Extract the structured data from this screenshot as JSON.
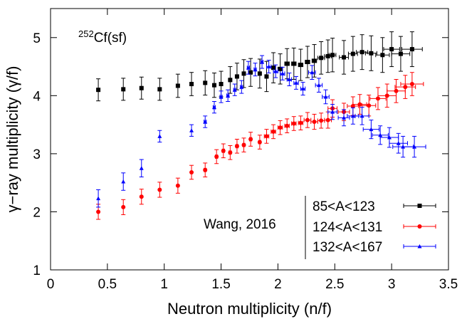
{
  "chart_data": {
    "type": "scatter",
    "title": "",
    "xlabel": "Neutron multiplicity (n/f)",
    "ylabel": "γ−ray multiplicity (γ/f)",
    "xlim": [
      0,
      3.5
    ],
    "ylim": [
      1,
      5.5
    ],
    "xticks": [
      "0",
      "0.5",
      "1",
      "1.5",
      "2",
      "2.5",
      "3",
      "3.5"
    ],
    "yticks": [
      "1",
      "2",
      "3",
      "4",
      "5"
    ],
    "grid": false,
    "legend_position": "bottom-right",
    "annotations": {
      "nucleus": {
        "mass": "252",
        "text": "Cf(sf)"
      },
      "source": "Wang, 2016"
    },
    "series": [
      {
        "name": "85<A<123",
        "color": "#000000",
        "marker": "square",
        "points": [
          {
            "x": 0.42,
            "y": 4.1,
            "yerr": 0.19,
            "xerr": 0.0
          },
          {
            "x": 0.64,
            "y": 4.11,
            "yerr": 0.19,
            "xerr": 0.0
          },
          {
            "x": 0.8,
            "y": 4.13,
            "yerr": 0.19,
            "xerr": 0.0
          },
          {
            "x": 0.96,
            "y": 4.11,
            "yerr": 0.19,
            "xerr": 0.0
          },
          {
            "x": 1.12,
            "y": 4.17,
            "yerr": 0.2,
            "xerr": 0.0
          },
          {
            "x": 1.24,
            "y": 4.2,
            "yerr": 0.2,
            "xerr": 0.0
          },
          {
            "x": 1.36,
            "y": 4.22,
            "yerr": 0.21,
            "xerr": 0.0
          },
          {
            "x": 1.44,
            "y": 4.18,
            "yerr": 0.21,
            "xerr": 0.0
          },
          {
            "x": 1.5,
            "y": 4.2,
            "yerr": 0.22,
            "xerr": 0.0
          },
          {
            "x": 1.58,
            "y": 4.27,
            "yerr": 0.23,
            "xerr": 0.01
          },
          {
            "x": 1.64,
            "y": 4.33,
            "yerr": 0.23,
            "xerr": 0.01
          },
          {
            "x": 1.7,
            "y": 4.38,
            "yerr": 0.24,
            "xerr": 0.01
          },
          {
            "x": 1.76,
            "y": 4.4,
            "yerr": 0.24,
            "xerr": 0.01
          },
          {
            "x": 1.84,
            "y": 4.38,
            "yerr": 0.25,
            "xerr": 0.01
          },
          {
            "x": 1.9,
            "y": 4.33,
            "yerr": 0.26,
            "xerr": 0.01
          },
          {
            "x": 1.96,
            "y": 4.48,
            "yerr": 0.26,
            "xerr": 0.01
          },
          {
            "x": 2.02,
            "y": 4.46,
            "yerr": 0.26,
            "xerr": 0.02
          },
          {
            "x": 2.08,
            "y": 4.55,
            "yerr": 0.26,
            "xerr": 0.02
          },
          {
            "x": 2.14,
            "y": 4.55,
            "yerr": 0.27,
            "xerr": 0.02
          },
          {
            "x": 2.2,
            "y": 4.53,
            "yerr": 0.27,
            "xerr": 0.02
          },
          {
            "x": 2.26,
            "y": 4.58,
            "yerr": 0.27,
            "xerr": 0.02
          },
          {
            "x": 2.32,
            "y": 4.6,
            "yerr": 0.28,
            "xerr": 0.02
          },
          {
            "x": 2.38,
            "y": 4.65,
            "yerr": 0.28,
            "xerr": 0.03
          },
          {
            "x": 2.44,
            "y": 4.68,
            "yerr": 0.28,
            "xerr": 0.03
          },
          {
            "x": 2.48,
            "y": 4.7,
            "yerr": 0.29,
            "xerr": 0.03
          },
          {
            "x": 2.58,
            "y": 4.66,
            "yerr": 0.29,
            "xerr": 0.04
          },
          {
            "x": 2.66,
            "y": 4.72,
            "yerr": 0.3,
            "xerr": 0.04
          },
          {
            "x": 2.74,
            "y": 4.75,
            "yerr": 0.3,
            "xerr": 0.05
          },
          {
            "x": 2.82,
            "y": 4.73,
            "yerr": 0.3,
            "xerr": 0.05
          },
          {
            "x": 2.92,
            "y": 4.7,
            "yerr": 0.3,
            "xerr": 0.06
          },
          {
            "x": 3.0,
            "y": 4.8,
            "yerr": 0.3,
            "xerr": 0.07
          },
          {
            "x": 3.08,
            "y": 4.72,
            "yerr": 0.3,
            "xerr": 0.08
          },
          {
            "x": 3.18,
            "y": 4.8,
            "yerr": 0.3,
            "xerr": 0.09
          }
        ]
      },
      {
        "name": "124<A<131",
        "color": "#ff0000",
        "marker": "circle",
        "points": [
          {
            "x": 0.42,
            "y": 2.0,
            "yerr": 0.13,
            "xerr": 0.0
          },
          {
            "x": 0.64,
            "y": 2.08,
            "yerr": 0.13,
            "xerr": 0.0
          },
          {
            "x": 0.8,
            "y": 2.26,
            "yerr": 0.13,
            "xerr": 0.0
          },
          {
            "x": 0.96,
            "y": 2.38,
            "yerr": 0.13,
            "xerr": 0.0
          },
          {
            "x": 1.12,
            "y": 2.45,
            "yerr": 0.13,
            "xerr": 0.0
          },
          {
            "x": 1.24,
            "y": 2.68,
            "yerr": 0.12,
            "xerr": 0.0
          },
          {
            "x": 1.36,
            "y": 2.72,
            "yerr": 0.12,
            "xerr": 0.01
          },
          {
            "x": 1.46,
            "y": 2.95,
            "yerr": 0.12,
            "xerr": 0.01
          },
          {
            "x": 1.52,
            "y": 3.05,
            "yerr": 0.12,
            "xerr": 0.01
          },
          {
            "x": 1.58,
            "y": 3.02,
            "yerr": 0.12,
            "xerr": 0.01
          },
          {
            "x": 1.64,
            "y": 3.13,
            "yerr": 0.12,
            "xerr": 0.01
          },
          {
            "x": 1.7,
            "y": 3.15,
            "yerr": 0.12,
            "xerr": 0.01
          },
          {
            "x": 1.76,
            "y": 3.25,
            "yerr": 0.12,
            "xerr": 0.01
          },
          {
            "x": 1.84,
            "y": 3.2,
            "yerr": 0.12,
            "xerr": 0.01
          },
          {
            "x": 1.9,
            "y": 3.3,
            "yerr": 0.12,
            "xerr": 0.02
          },
          {
            "x": 1.96,
            "y": 3.38,
            "yerr": 0.12,
            "xerr": 0.02
          },
          {
            "x": 2.02,
            "y": 3.45,
            "yerr": 0.12,
            "xerr": 0.02
          },
          {
            "x": 2.08,
            "y": 3.48,
            "yerr": 0.12,
            "xerr": 0.02
          },
          {
            "x": 2.14,
            "y": 3.52,
            "yerr": 0.12,
            "xerr": 0.02
          },
          {
            "x": 2.2,
            "y": 3.53,
            "yerr": 0.12,
            "xerr": 0.02
          },
          {
            "x": 2.26,
            "y": 3.58,
            "yerr": 0.13,
            "xerr": 0.03
          },
          {
            "x": 2.32,
            "y": 3.55,
            "yerr": 0.13,
            "xerr": 0.03
          },
          {
            "x": 2.38,
            "y": 3.57,
            "yerr": 0.13,
            "xerr": 0.03
          },
          {
            "x": 2.44,
            "y": 3.58,
            "yerr": 0.14,
            "xerr": 0.03
          },
          {
            "x": 2.48,
            "y": 3.78,
            "yerr": 0.15,
            "xerr": 0.04
          },
          {
            "x": 2.58,
            "y": 3.72,
            "yerr": 0.15,
            "xerr": 0.05
          },
          {
            "x": 2.66,
            "y": 3.82,
            "yerr": 0.16,
            "xerr": 0.05
          },
          {
            "x": 2.72,
            "y": 3.85,
            "yerr": 0.17,
            "xerr": 0.06
          },
          {
            "x": 2.8,
            "y": 3.83,
            "yerr": 0.18,
            "xerr": 0.06
          },
          {
            "x": 2.88,
            "y": 3.95,
            "yerr": 0.19,
            "xerr": 0.07
          },
          {
            "x": 2.96,
            "y": 4.0,
            "yerr": 0.2,
            "xerr": 0.08
          },
          {
            "x": 3.04,
            "y": 4.08,
            "yerr": 0.2,
            "xerr": 0.08
          },
          {
            "x": 3.12,
            "y": 4.15,
            "yerr": 0.2,
            "xerr": 0.09
          },
          {
            "x": 3.18,
            "y": 4.2,
            "yerr": 0.2,
            "xerr": 0.1
          }
        ]
      },
      {
        "name": "132<A<167",
        "color": "#0000ff",
        "marker": "triangle",
        "points": [
          {
            "x": 0.42,
            "y": 2.23,
            "yerr": 0.15,
            "xerr": 0.0
          },
          {
            "x": 0.64,
            "y": 2.52,
            "yerr": 0.15,
            "xerr": 0.0
          },
          {
            "x": 0.8,
            "y": 2.75,
            "yerr": 0.15,
            "xerr": 0.0
          },
          {
            "x": 0.96,
            "y": 3.3,
            "yerr": 0.1,
            "xerr": 0.0
          },
          {
            "x": 1.24,
            "y": 3.4,
            "yerr": 0.1,
            "xerr": 0.0
          },
          {
            "x": 1.36,
            "y": 3.55,
            "yerr": 0.1,
            "xerr": 0.01
          },
          {
            "x": 1.44,
            "y": 3.8,
            "yerr": 0.1,
            "xerr": 0.01
          },
          {
            "x": 1.5,
            "y": 3.98,
            "yerr": 0.1,
            "xerr": 0.01
          },
          {
            "x": 1.56,
            "y": 4.0,
            "yerr": 0.1,
            "xerr": 0.01
          },
          {
            "x": 1.62,
            "y": 4.1,
            "yerr": 0.1,
            "xerr": 0.01
          },
          {
            "x": 1.68,
            "y": 4.15,
            "yerr": 0.11,
            "xerr": 0.01
          },
          {
            "x": 1.74,
            "y": 4.48,
            "yerr": 0.11,
            "xerr": 0.01
          },
          {
            "x": 1.8,
            "y": 4.45,
            "yerr": 0.11,
            "xerr": 0.01
          },
          {
            "x": 1.86,
            "y": 4.58,
            "yerr": 0.11,
            "xerr": 0.01
          },
          {
            "x": 1.92,
            "y": 4.5,
            "yerr": 0.11,
            "xerr": 0.02
          },
          {
            "x": 1.98,
            "y": 4.42,
            "yerr": 0.11,
            "xerr": 0.02
          },
          {
            "x": 2.04,
            "y": 4.38,
            "yerr": 0.11,
            "xerr": 0.02
          },
          {
            "x": 2.1,
            "y": 4.28,
            "yerr": 0.11,
            "xerr": 0.02
          },
          {
            "x": 2.16,
            "y": 4.22,
            "yerr": 0.11,
            "xerr": 0.02
          },
          {
            "x": 2.22,
            "y": 4.12,
            "yerr": 0.11,
            "xerr": 0.02
          },
          {
            "x": 2.3,
            "y": 4.4,
            "yerr": 0.12,
            "xerr": 0.03
          },
          {
            "x": 2.36,
            "y": 4.18,
            "yerr": 0.12,
            "xerr": 0.03
          },
          {
            "x": 2.42,
            "y": 3.98,
            "yerr": 0.12,
            "xerr": 0.03
          },
          {
            "x": 2.48,
            "y": 3.72,
            "yerr": 0.13,
            "xerr": 0.04
          },
          {
            "x": 2.58,
            "y": 3.62,
            "yerr": 0.14,
            "xerr": 0.05
          },
          {
            "x": 2.66,
            "y": 3.65,
            "yerr": 0.14,
            "xerr": 0.05
          },
          {
            "x": 2.74,
            "y": 3.65,
            "yerr": 0.15,
            "xerr": 0.06
          },
          {
            "x": 2.82,
            "y": 3.42,
            "yerr": 0.16,
            "xerr": 0.07
          },
          {
            "x": 2.9,
            "y": 3.32,
            "yerr": 0.16,
            "xerr": 0.07
          },
          {
            "x": 2.98,
            "y": 3.28,
            "yerr": 0.17,
            "xerr": 0.08
          },
          {
            "x": 3.06,
            "y": 3.18,
            "yerr": 0.17,
            "xerr": 0.08
          },
          {
            "x": 3.1,
            "y": 3.12,
            "yerr": 0.18,
            "xerr": 0.09
          },
          {
            "x": 3.2,
            "y": 3.12,
            "yerr": 0.18,
            "xerr": 0.1
          }
        ]
      }
    ]
  }
}
